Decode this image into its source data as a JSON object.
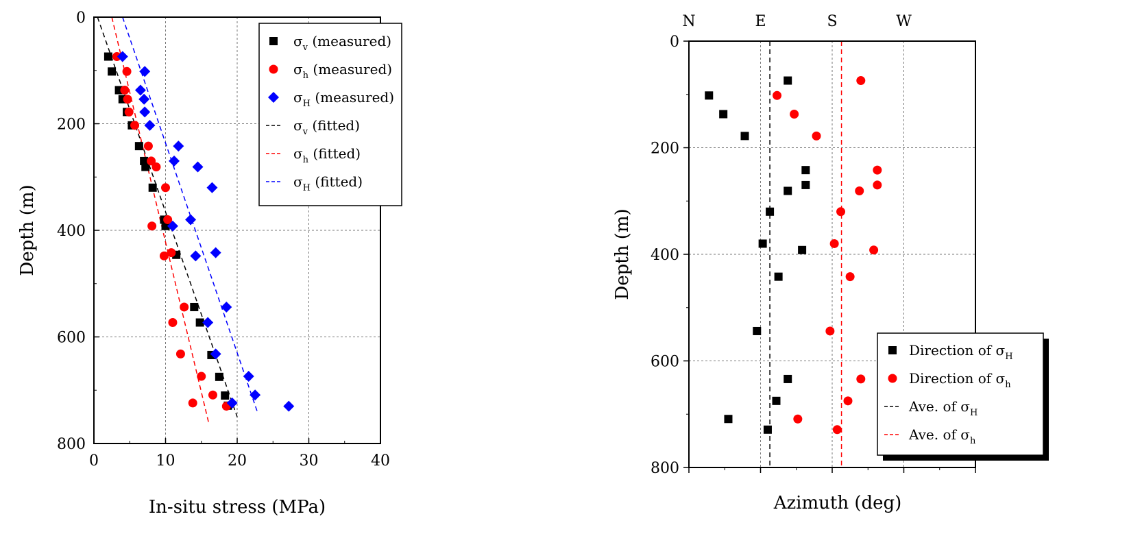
{
  "chart_data": [
    {
      "type": "scatter",
      "xlabel": "In-situ stress (MPa)",
      "ylabel": "Depth (m)",
      "xlim": [
        0,
        40
      ],
      "ylim": [
        0,
        800
      ],
      "y_inverted": true,
      "xticks": [
        "0",
        "10",
        "20",
        "30",
        "40"
      ],
      "yticks": [
        "0",
        "200",
        "400",
        "600",
        "800"
      ],
      "grid": true,
      "legend_position": "top-right",
      "series": [
        {
          "name": "σv (measured)",
          "symbol": "σ",
          "subscript": "v",
          "suffix": " (measured)",
          "marker": "square",
          "color": "#000000",
          "points": [
            [
              2,
              74
            ],
            [
              2.5,
              102
            ],
            [
              3.5,
              137
            ],
            [
              4,
              154
            ],
            [
              4.6,
              178
            ],
            [
              5.3,
              203
            ],
            [
              6.3,
              242
            ],
            [
              7,
              270
            ],
            [
              7.2,
              281
            ],
            [
              8.2,
              320
            ],
            [
              9.8,
              380
            ],
            [
              10,
              392
            ],
            [
              11.5,
              446
            ],
            [
              14,
              544
            ],
            [
              14.8,
              573
            ],
            [
              16.4,
              634
            ],
            [
              17.5,
              675
            ],
            [
              18.3,
              710
            ],
            [
              18.7,
              729
            ]
          ]
        },
        {
          "name": "σh (measured)",
          "symbol": "σ",
          "subscript": "h",
          "suffix": " (measured)",
          "marker": "circle",
          "color": "#ff0000",
          "points": [
            [
              3.2,
              74
            ],
            [
              4.6,
              102
            ],
            [
              4.3,
              137
            ],
            [
              4.7,
              154
            ],
            [
              4.9,
              178
            ],
            [
              5.7,
              203
            ],
            [
              7.6,
              242
            ],
            [
              8,
              270
            ],
            [
              8.7,
              281
            ],
            [
              10,
              320
            ],
            [
              10.3,
              380
            ],
            [
              8.1,
              392
            ],
            [
              10.8,
              442
            ],
            [
              9.8,
              448
            ],
            [
              12.6,
              544
            ],
            [
              11,
              573
            ],
            [
              12.1,
              632
            ],
            [
              15,
              674
            ],
            [
              16.6,
              709
            ],
            [
              13.8,
              724
            ],
            [
              18.5,
              730
            ]
          ]
        },
        {
          "name": "σH (measured)",
          "symbol": "σ",
          "subscript": "H",
          "suffix": " (measured)",
          "marker": "diamond",
          "color": "#0000ff",
          "points": [
            [
              4,
              74
            ],
            [
              7.1,
              102
            ],
            [
              6.5,
              137
            ],
            [
              7,
              154
            ],
            [
              7.1,
              178
            ],
            [
              7.8,
              203
            ],
            [
              11.8,
              242
            ],
            [
              11.2,
              270
            ],
            [
              14.5,
              281
            ],
            [
              16.5,
              320
            ],
            [
              13.5,
              380
            ],
            [
              11,
              392
            ],
            [
              17,
              442
            ],
            [
              14.2,
              448
            ],
            [
              18.5,
              544
            ],
            [
              15.9,
              573
            ],
            [
              17,
              632
            ],
            [
              21.6,
              674
            ],
            [
              22.5,
              709
            ],
            [
              19.3,
              724
            ],
            [
              27.2,
              730
            ]
          ]
        },
        {
          "name": "σv (fitted)",
          "symbol": "σ",
          "subscript": "v",
          "suffix": " (fitted)",
          "marker": "dashed-line",
          "color": "#000000",
          "points": [
            [
              0.5,
              0
            ],
            [
              20,
              750
            ]
          ]
        },
        {
          "name": "σh (fitted)",
          "symbol": "σ",
          "subscript": "h",
          "suffix": " (fitted)",
          "marker": "dashed-line",
          "color": "#ff0000",
          "points": [
            [
              2.5,
              0
            ],
            [
              16,
              760
            ]
          ]
        },
        {
          "name": "σH (fitted)",
          "symbol": "σ",
          "subscript": "H",
          "suffix": " (fitted)",
          "marker": "dashed-line",
          "color": "#0000ff",
          "points": [
            [
              4,
              0
            ],
            [
              22.8,
              740
            ]
          ]
        }
      ]
    },
    {
      "type": "scatter",
      "xlabel": "Azimuth (deg)",
      "ylabel": "Depth (m)",
      "xlim": [
        0,
        400
      ],
      "ylim": [
        0,
        800
      ],
      "y_inverted": true,
      "xticks": [
        "N",
        "E",
        "S",
        "W"
      ],
      "xtick_values": [
        0,
        100,
        200,
        300
      ],
      "yticks": [
        "0",
        "200",
        "400",
        "600",
        "800"
      ],
      "grid": true,
      "legend_position": "bottom-right",
      "series": [
        {
          "name": "Direction of σH",
          "prefix": "Direction of ",
          "symbol": "σ",
          "subscript": "H",
          "marker": "square",
          "color": "#000000",
          "points": [
            [
              138,
              74
            ],
            [
              28,
              102
            ],
            [
              48,
              137
            ],
            [
              78,
              178
            ],
            [
              163,
              242
            ],
            [
              163,
              270
            ],
            [
              138,
              281
            ],
            [
              113,
              320
            ],
            [
              103,
              380
            ],
            [
              158,
              392
            ],
            [
              125,
              442
            ],
            [
              95,
              544
            ],
            [
              138,
              634
            ],
            [
              122,
              675
            ],
            [
              55,
              709
            ],
            [
              110,
              729
            ]
          ]
        },
        {
          "name": "Direction of σh",
          "prefix": "Direction of ",
          "symbol": "σ",
          "subscript": "h",
          "marker": "circle",
          "color": "#ff0000",
          "points": [
            [
              240,
              74
            ],
            [
              123,
              102
            ],
            [
              147,
              137
            ],
            [
              178,
              178
            ],
            [
              263,
              242
            ],
            [
              263,
              270
            ],
            [
              238,
              281
            ],
            [
              212,
              320
            ],
            [
              203,
              380
            ],
            [
              258,
              392
            ],
            [
              225,
              442
            ],
            [
              197,
              544
            ],
            [
              240,
              634
            ],
            [
              222,
              675
            ],
            [
              152,
              709
            ],
            [
              207,
              729
            ]
          ]
        },
        {
          "name": "Ave. of σH",
          "prefix": "Ave. of ",
          "symbol": "σ",
          "subscript": "H",
          "marker": "dashed-line",
          "color": "#000000",
          "x_value": 113
        },
        {
          "name": "Ave. of σh",
          "prefix": "Ave. of ",
          "symbol": "σ",
          "subscript": "h",
          "marker": "dashed-line",
          "color": "#ff0000",
          "x_value": 213
        }
      ]
    }
  ]
}
